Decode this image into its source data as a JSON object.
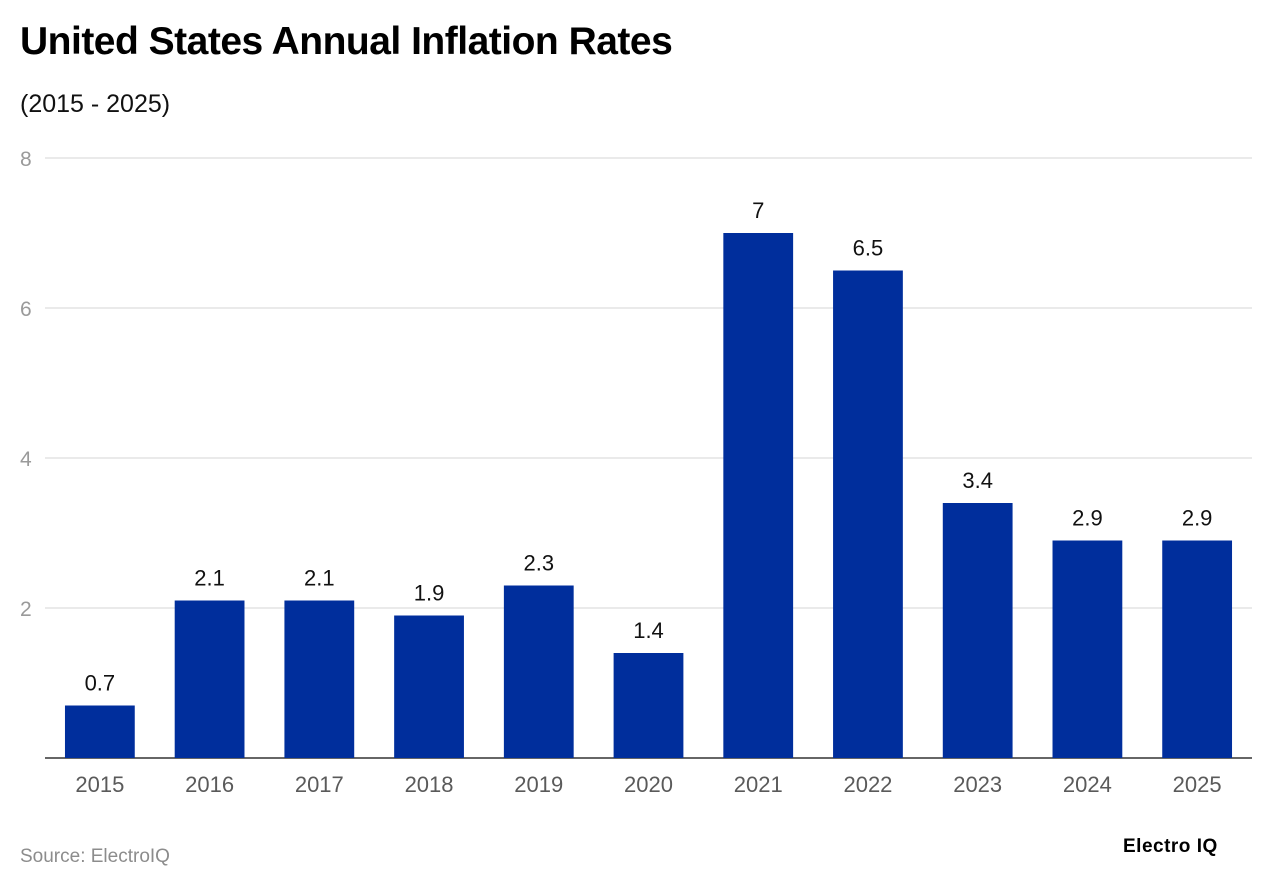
{
  "chart_data": {
    "type": "bar",
    "title": "United States Annual Inflation Rates",
    "subtitle": "(2015 - 2025)",
    "xlabel": "",
    "ylabel": "",
    "categories": [
      "2015",
      "2016",
      "2017",
      "2018",
      "2019",
      "2020",
      "2021",
      "2022",
      "2023",
      "2024",
      "2025"
    ],
    "values": [
      0.7,
      2.1,
      2.1,
      1.9,
      2.3,
      1.4,
      7,
      6.5,
      3.4,
      2.9,
      2.9
    ],
    "data_labels": [
      "0.7",
      "2.1",
      "2.1",
      "1.9",
      "2.3",
      "1.4",
      "7",
      "6.5",
      "3.4",
      "2.9",
      "2.9"
    ],
    "ylim": [
      0,
      8
    ],
    "yticks": [
      2,
      4,
      6,
      8
    ],
    "grid": true,
    "legend": "none",
    "bar_color": "#002e9c",
    "grid_color": "#e3e3e3"
  },
  "footer": {
    "source": "Source: ElectroIQ",
    "brand": "Electro IQ"
  }
}
